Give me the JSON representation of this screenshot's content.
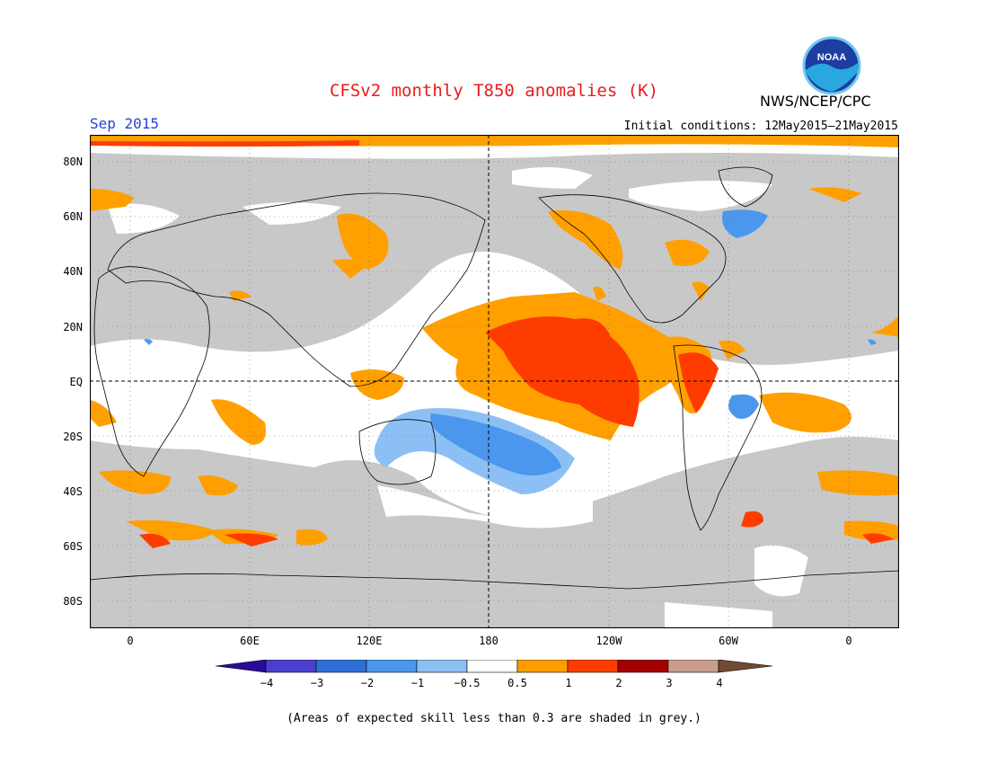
{
  "header": {
    "title": "CFSv2 monthly T850 anomalies (K)",
    "agency": "NWS/NCEP/CPC",
    "logo_text": "NOAA",
    "month": "Sep 2015",
    "initial_conditions": "Initial conditions: 12May2015–21May2015"
  },
  "axes": {
    "lat_labels": [
      "80N",
      "60N",
      "40N",
      "20N",
      "EQ",
      "20S",
      "40S",
      "60S",
      "80S"
    ],
    "lon_labels": [
      "0",
      "60E",
      "120E",
      "180",
      "120W",
      "60W",
      "0"
    ]
  },
  "colorbar": {
    "tick_labels": [
      "−4",
      "−3",
      "−2",
      "−1",
      "−0.5",
      "0.5",
      "1",
      "2",
      "3",
      "4"
    ],
    "colors": [
      "#2a0a99",
      "#4b3fcf",
      "#2f6ed6",
      "#4b97ee",
      "#8cc0f5",
      "#ffffff",
      "#ff9d00",
      "#ff3c00",
      "#a50000",
      "#c99d8e",
      "#6f4a35"
    ]
  },
  "colors": {
    "title": "#e81b1b",
    "month": "#2a3fd6",
    "grey_skill": "#c8c8c8",
    "warm1": "#ffa000",
    "warm2": "#ff3c00",
    "cool1": "#8cc0f5",
    "cool2": "#4b97ee"
  },
  "note": "(Areas of expected skill less than 0.3 are shaded in grey.)"
}
